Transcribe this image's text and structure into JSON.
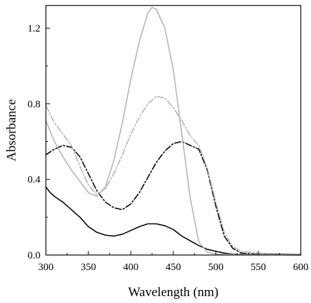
{
  "chart_data": {
    "type": "line",
    "title": "",
    "xlabel": "Wavelength (nm)",
    "ylabel": "Absorbance",
    "xlim": [
      300,
      600
    ],
    "ylim": [
      0.0,
      1.32
    ],
    "x_ticks": [
      300,
      350,
      400,
      450,
      500,
      550,
      600
    ],
    "x_tick_labels": [
      "300",
      "350",
      "400",
      "450",
      "500",
      "550",
      "600"
    ],
    "y_ticks": [
      0.0,
      0.4,
      0.8,
      1.2
    ],
    "y_tick_labels": [
      "0.0",
      "0.4",
      "0.8",
      "1.2"
    ],
    "grid": false,
    "legend": "none",
    "series": [
      {
        "color": "#000000",
        "dash": "solid",
        "points": [
          [
            300,
            0.36
          ],
          [
            305,
            0.33
          ],
          [
            310,
            0.31
          ],
          [
            320,
            0.28
          ],
          [
            330,
            0.24
          ],
          [
            340,
            0.2
          ],
          [
            350,
            0.15
          ],
          [
            360,
            0.12
          ],
          [
            370,
            0.105
          ],
          [
            380,
            0.1
          ],
          [
            390,
            0.11
          ],
          [
            400,
            0.13
          ],
          [
            410,
            0.15
          ],
          [
            420,
            0.165
          ],
          [
            430,
            0.165
          ],
          [
            440,
            0.155
          ],
          [
            450,
            0.135
          ],
          [
            460,
            0.1
          ],
          [
            470,
            0.075
          ],
          [
            480,
            0.05
          ],
          [
            490,
            0.03
          ],
          [
            500,
            0.02
          ],
          [
            510,
            0.01
          ],
          [
            520,
            0.005
          ],
          [
            540,
            0.003
          ],
          [
            560,
            0.002
          ],
          [
            600,
            0.0
          ]
        ]
      },
      {
        "color": "#000000",
        "dash": "dashdot",
        "points": [
          [
            300,
            0.53
          ],
          [
            310,
            0.56
          ],
          [
            320,
            0.58
          ],
          [
            330,
            0.57
          ],
          [
            340,
            0.52
          ],
          [
            350,
            0.43
          ],
          [
            360,
            0.34
          ],
          [
            370,
            0.28
          ],
          [
            380,
            0.25
          ],
          [
            390,
            0.24
          ],
          [
            400,
            0.27
          ],
          [
            410,
            0.33
          ],
          [
            420,
            0.41
          ],
          [
            430,
            0.49
          ],
          [
            440,
            0.55
          ],
          [
            450,
            0.59
          ],
          [
            460,
            0.6
          ],
          [
            470,
            0.58
          ],
          [
            480,
            0.56
          ],
          [
            490,
            0.45
          ],
          [
            500,
            0.26
          ],
          [
            510,
            0.1
          ],
          [
            520,
            0.035
          ],
          [
            530,
            0.01
          ],
          [
            550,
            0.004
          ],
          [
            600,
            0.002
          ]
        ]
      },
      {
        "color": "#b4b4b4",
        "dash": "solid",
        "points": [
          [
            300,
            0.71
          ],
          [
            310,
            0.6
          ],
          [
            320,
            0.52
          ],
          [
            330,
            0.45
          ],
          [
            340,
            0.39
          ],
          [
            350,
            0.33
          ],
          [
            360,
            0.31
          ],
          [
            370,
            0.36
          ],
          [
            380,
            0.5
          ],
          [
            390,
            0.7
          ],
          [
            400,
            0.93
          ],
          [
            410,
            1.13
          ],
          [
            420,
            1.28
          ],
          [
            425,
            1.31
          ],
          [
            430,
            1.3
          ],
          [
            440,
            1.2
          ],
          [
            450,
            0.98
          ],
          [
            460,
            0.64
          ],
          [
            470,
            0.3
          ],
          [
            480,
            0.07
          ],
          [
            490,
            0.015
          ],
          [
            500,
            0.005
          ],
          [
            550,
            0.002
          ],
          [
            600,
            0.0
          ]
        ]
      },
      {
        "color": "#b4b4b4",
        "dash": "dashdot",
        "points": [
          [
            300,
            0.79
          ],
          [
            310,
            0.7
          ],
          [
            320,
            0.64
          ],
          [
            330,
            0.58
          ],
          [
            340,
            0.47
          ],
          [
            350,
            0.37
          ],
          [
            360,
            0.32
          ],
          [
            370,
            0.35
          ],
          [
            380,
            0.43
          ],
          [
            390,
            0.53
          ],
          [
            400,
            0.64
          ],
          [
            410,
            0.73
          ],
          [
            420,
            0.8
          ],
          [
            430,
            0.84
          ],
          [
            440,
            0.83
          ],
          [
            450,
            0.78
          ],
          [
            460,
            0.71
          ],
          [
            470,
            0.63
          ],
          [
            480,
            0.58
          ],
          [
            490,
            0.46
          ],
          [
            500,
            0.28
          ],
          [
            510,
            0.12
          ],
          [
            520,
            0.045
          ],
          [
            530,
            0.02
          ],
          [
            550,
            0.01
          ],
          [
            600,
            0.005
          ]
        ]
      }
    ]
  }
}
